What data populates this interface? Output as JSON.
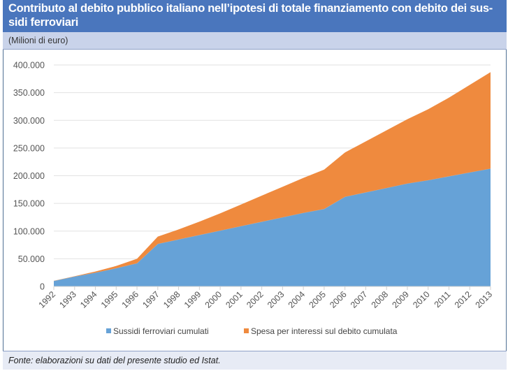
{
  "header": {
    "title": "Contributo al debito pubblico italiano nell’ipotesi di totale finanziamento con debito dei sussidi ferroviari",
    "title_line1": "Contributo al debito pubblico italiano nell’ipotesi di totale finanziamento con debito dei sus-",
    "title_line2": "sidi ferroviari",
    "unit": "(Milioni di euro)"
  },
  "footer": {
    "source": "Fonte: elaborazioni su dati del presente studio ed Istat."
  },
  "colors": {
    "title_bg": "#4a76bd",
    "subtitle_bg": "#c9d3ea",
    "series_blue": "#66a2d7",
    "series_orange": "#ef8a3e",
    "grid": "#e2e2e2"
  },
  "chart_data": {
    "type": "area",
    "stacked": true,
    "title": "Contributo al debito pubblico italiano nell’ipotesi di totale finanziamento con debito dei sussidi ferroviari",
    "ylabel": "(Milioni di euro)",
    "xlabel": "",
    "ylim": [
      0,
      400000
    ],
    "grid": true,
    "legend_position": "bottom",
    "y_ticks": [
      0,
      50000,
      100000,
      150000,
      200000,
      250000,
      300000,
      350000,
      400000
    ],
    "y_tick_labels": [
      "0",
      "50.000",
      "100.000",
      "150.000",
      "200.000",
      "250.000",
      "300.000",
      "350.000",
      "400.000"
    ],
    "categories": [
      "1992",
      "1993",
      "1994",
      "1995",
      "1996",
      "1997",
      "1998",
      "1999",
      "2000",
      "2001",
      "2002",
      "2003",
      "2004",
      "2005",
      "2006",
      "2007",
      "2008",
      "2009",
      "2010",
      "2011",
      "2012",
      "2013"
    ],
    "series": [
      {
        "name": "Sussidi ferroviari cumulati",
        "color": "#66a2d7",
        "values": [
          10000,
          18000,
          25000,
          33000,
          42000,
          77000,
          85000,
          93000,
          101000,
          109000,
          117000,
          125000,
          133000,
          140000,
          162000,
          170000,
          178000,
          186000,
          192000,
          199000,
          206000,
          213000
        ]
      },
      {
        "name": "Spesa per interessi sul debito cumulata",
        "color": "#ef8a3e",
        "values": [
          0,
          500,
          2000,
          4000,
          8000,
          13000,
          18000,
          24000,
          31000,
          39000,
          47000,
          55000,
          63000,
          71000,
          80000,
          92000,
          104000,
          116000,
          128000,
          142000,
          158000,
          174000
        ]
      }
    ]
  }
}
